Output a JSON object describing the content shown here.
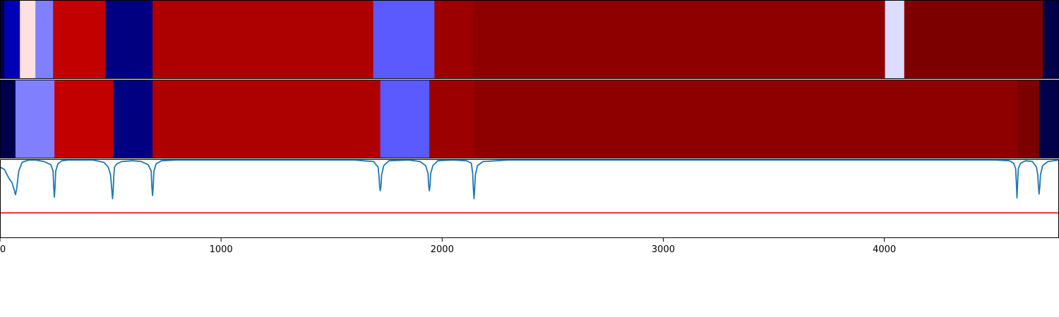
{
  "chart_data": [
    {
      "type": "heatmap",
      "panel": "top-row",
      "xlim": [
        0,
        4790
      ],
      "grid": false,
      "segments": [
        {
          "start": 0,
          "end": 20,
          "color": "#00004a"
        },
        {
          "start": 20,
          "end": 90,
          "color": "#0000b4"
        },
        {
          "start": 90,
          "end": 160,
          "color": "#ffe0e0"
        },
        {
          "start": 160,
          "end": 240,
          "color": "#8080ff"
        },
        {
          "start": 240,
          "end": 477,
          "color": "#c20000"
        },
        {
          "start": 477,
          "end": 690,
          "color": "#000080"
        },
        {
          "start": 690,
          "end": 1688,
          "color": "#ad0000"
        },
        {
          "start": 1688,
          "end": 1965,
          "color": "#5a5aff"
        },
        {
          "start": 1965,
          "end": 2137,
          "color": "#9d0000"
        },
        {
          "start": 2137,
          "end": 4003,
          "color": "#8e0000"
        },
        {
          "start": 4003,
          "end": 4090,
          "color": "#dcdcff"
        },
        {
          "start": 4090,
          "end": 4717,
          "color": "#7c0000"
        },
        {
          "start": 4717,
          "end": 4790,
          "color": "#00004a"
        }
      ]
    },
    {
      "type": "heatmap",
      "panel": "middle-row",
      "xlim": [
        0,
        4790
      ],
      "grid": false,
      "segments": [
        {
          "start": 0,
          "end": 70,
          "color": "#00004a"
        },
        {
          "start": 70,
          "end": 246,
          "color": "#8080ff"
        },
        {
          "start": 246,
          "end": 512,
          "color": "#c20000"
        },
        {
          "start": 512,
          "end": 690,
          "color": "#000080"
        },
        {
          "start": 690,
          "end": 1720,
          "color": "#ad0000"
        },
        {
          "start": 1720,
          "end": 1942,
          "color": "#5a5aff"
        },
        {
          "start": 1942,
          "end": 2145,
          "color": "#9d0000"
        },
        {
          "start": 2145,
          "end": 4600,
          "color": "#8e0000"
        },
        {
          "start": 4600,
          "end": 4700,
          "color": "#7c0000"
        },
        {
          "start": 4700,
          "end": 4790,
          "color": "#00004a"
        }
      ]
    },
    {
      "type": "line",
      "panel": "bottom-signal",
      "xlim": [
        0,
        4790
      ],
      "ylim": [
        0,
        1
      ],
      "grid": false,
      "series": [
        {
          "color": "#1f77b4",
          "x": [
            0,
            20,
            40,
            55,
            65,
            70,
            75,
            85,
            100,
            130,
            160,
            200,
            230,
            240,
            243,
            246,
            249,
            252,
            262,
            280,
            310,
            360,
            420,
            470,
            490,
            500,
            506,
            509,
            512,
            515,
            518,
            528,
            550,
            600,
            640,
            670,
            684,
            687,
            690,
            693,
            696,
            706,
            730,
            800,
            1000,
            1300,
            1600,
            1690,
            1710,
            1714,
            1717,
            1720,
            1723,
            1726,
            1736,
            1760,
            1850,
            1900,
            1925,
            1936,
            1939,
            1942,
            1945,
            1948,
            1958,
            1980,
            2050,
            2110,
            2132,
            2138,
            2141,
            2144,
            2147,
            2150,
            2160,
            2185,
            2300,
            2700,
            3200,
            3700,
            4200,
            4500,
            4565,
            4585,
            4594,
            4597,
            4600,
            4603,
            4606,
            4616,
            4640,
            4670,
            4688,
            4694,
            4697,
            4700,
            4703,
            4706,
            4716,
            4740,
            4790
          ],
          "y": [
            0.9,
            0.87,
            0.76,
            0.7,
            0.6,
            0.55,
            0.62,
            0.85,
            0.96,
            0.99,
            0.99,
            0.97,
            0.93,
            0.85,
            0.65,
            0.52,
            0.65,
            0.85,
            0.94,
            0.98,
            0.99,
            0.99,
            0.99,
            0.96,
            0.9,
            0.8,
            0.6,
            0.5,
            0.6,
            0.8,
            0.9,
            0.94,
            0.97,
            0.98,
            0.97,
            0.93,
            0.85,
            0.65,
            0.54,
            0.65,
            0.85,
            0.94,
            0.98,
            0.99,
            0.99,
            0.99,
            0.99,
            0.97,
            0.9,
            0.8,
            0.66,
            0.6,
            0.66,
            0.8,
            0.92,
            0.98,
            0.99,
            0.97,
            0.92,
            0.82,
            0.66,
            0.6,
            0.66,
            0.82,
            0.92,
            0.98,
            0.99,
            0.98,
            0.95,
            0.82,
            0.62,
            0.5,
            0.62,
            0.8,
            0.92,
            0.97,
            0.99,
            0.99,
            0.99,
            0.99,
            0.99,
            0.99,
            0.98,
            0.95,
            0.88,
            0.7,
            0.51,
            0.7,
            0.88,
            0.95,
            0.98,
            0.97,
            0.9,
            0.8,
            0.65,
            0.56,
            0.65,
            0.8,
            0.92,
            0.97,
            0.99
          ]
        },
        {
          "color": "#ff0000",
          "x": [
            0,
            4790
          ],
          "y": [
            0.32,
            0.32
          ]
        }
      ],
      "xticks": [
        0,
        1000,
        2000,
        3000,
        4000
      ],
      "xtick_labels": [
        "0",
        "1000",
        "2000",
        "3000",
        "4000"
      ]
    }
  ]
}
